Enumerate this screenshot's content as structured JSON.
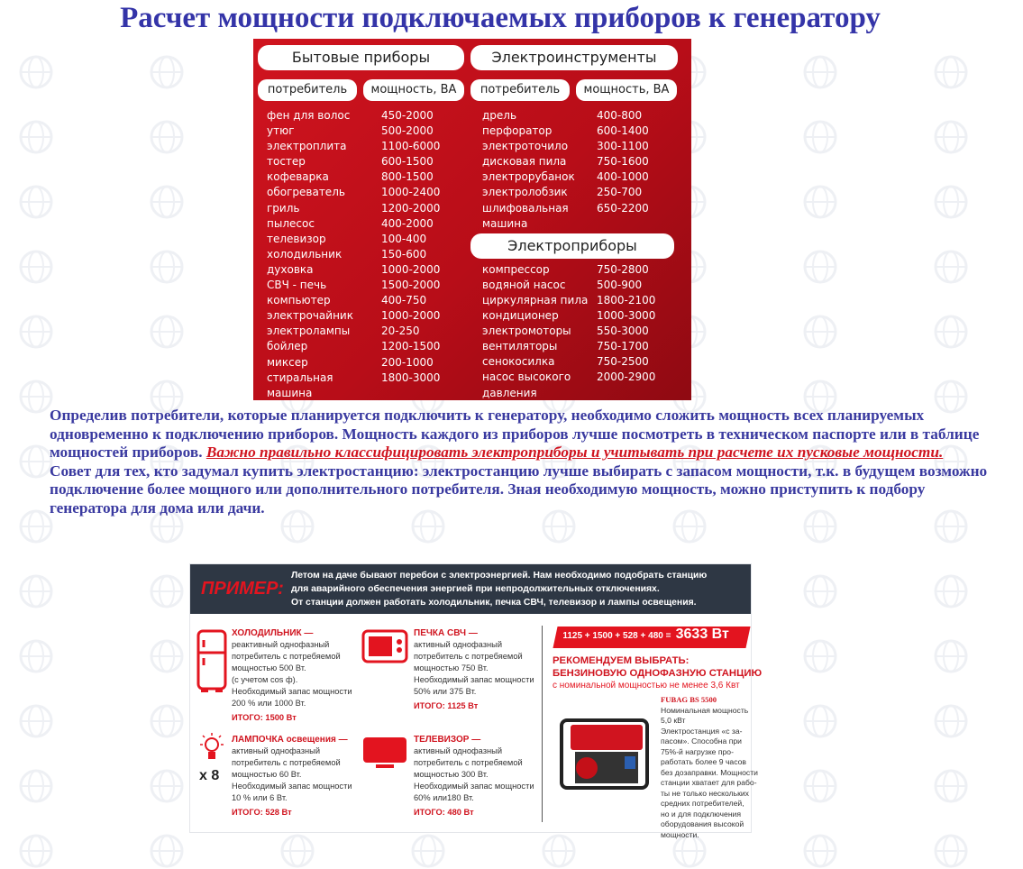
{
  "watermark": "ТЕХНОСОЮЗ",
  "title": "Расчет мощности подключаемых приборов к генератору",
  "table": {
    "household_title": "Бытовые приборы",
    "tools_title": "Электроинструменты",
    "devices_title": "Электроприборы",
    "col_consumer": "потребитель",
    "col_power": "мощность, ВА",
    "household": [
      [
        "фен для волос",
        "450-2000"
      ],
      [
        "утюг",
        "500-2000"
      ],
      [
        "электроплита",
        "1100-6000"
      ],
      [
        "тостер",
        "600-1500"
      ],
      [
        "кофеварка",
        "800-1500"
      ],
      [
        "обогреватель",
        "1000-2400"
      ],
      [
        "гриль",
        "1200-2000"
      ],
      [
        "пылесос",
        "400-2000"
      ],
      [
        "телевизор",
        "100-400"
      ],
      [
        "холодильник",
        "150-600"
      ],
      [
        "духовка",
        "1000-2000"
      ],
      [
        "СВЧ - печь",
        "1500-2000"
      ],
      [
        "компьютер",
        "400-750"
      ],
      [
        "электрочайник",
        "1000-2000"
      ],
      [
        "электролампы",
        "20-250"
      ],
      [
        "бойлер",
        "1200-1500"
      ],
      [
        "миксер",
        "200-1000"
      ],
      [
        "стиральная машина",
        "1800-3000"
      ]
    ],
    "tools": [
      [
        "дрель",
        "400-800"
      ],
      [
        "перфоратор",
        "600-1400"
      ],
      [
        "электроточило",
        "300-1100"
      ],
      [
        "дисковая пила",
        "750-1600"
      ],
      [
        "электрорубанок",
        "400-1000"
      ],
      [
        "электролобзик",
        "250-700"
      ],
      [
        "шлифовальная машина",
        "650-2200"
      ]
    ],
    "devices": [
      [
        "компрессор",
        "750-2800"
      ],
      [
        "водяной насос",
        "500-900"
      ],
      [
        "циркулярная пила",
        "1800-2100"
      ],
      [
        "кондиционер",
        "1000-3000"
      ],
      [
        "электромоторы",
        "550-3000"
      ],
      [
        "вентиляторы",
        "750-1700"
      ],
      [
        "сенокосилка",
        "750-2500"
      ],
      [
        "насос высокого давления",
        "2000-2900"
      ]
    ]
  },
  "paragraph": {
    "p1": "Определив потребители, которые планируется подключить к генератору, необходимо сложить мощность всех планируемых одновременно к подключению приборов. Мощность каждого из приборов лучше посмотреть в техническом паспорте или в таблице мощностей приборов. ",
    "warning": "Важно правильно классифицировать электроприборы и учитывать при расчете их пусковые мощности.",
    "p2": "Совет для тех, кто задумал купить электростанцию: электростанцию лучше выбирать с запасом мощности, т.к. в будущем возможно подключение более мощного или дополнительного потребителя. Зная необходимую мощность, можно приступить к подбору генератора для дома или дачи."
  },
  "example": {
    "label": "ПРИМЕР:",
    "intro": [
      "Летом на даче бывают перебои с электроэнергией. Нам необходимо подобрать станцию",
      "для аварийного обеспечения энергией при непродолжительных отключениях.",
      "От станции должен работать холодильник, печка СВЧ, телевизор и лампы освещения."
    ],
    "accent": "#e3141f",
    "cards": [
      {
        "title": "ХОЛОДИЛЬНИК —",
        "text": [
          "реактивный однофазный",
          "потребитель с потребяемой",
          "мощностью 500 Вт.",
          "(с учетом cos ф).",
          "Необходимый запас мощности",
          "200 % или 1000 Вт."
        ],
        "total": "ИТОГО: 1500 Вт",
        "icon": "fridge-icon"
      },
      {
        "title": "ПЕЧКА СВЧ —",
        "text": [
          "активный однофазный",
          "потребитель с потребяемой",
          "мощностью 750 Вт.",
          "Необходимый запас мощности",
          "50% или 375 Вт."
        ],
        "total": "ИТОГО: 1125 Вт",
        "icon": "microwave-icon"
      },
      {
        "title": "ЛАМПОЧКА освещения —",
        "text": [
          "активный однофазный",
          "потребитель с потребяемой",
          "мощностью 60 Вт.",
          "Необходимый запас мощности",
          "10 % или 6 Вт."
        ],
        "total": "ИТОГО: 528 Вт",
        "icon": "lightbulb-icon",
        "multiplier": "x 8"
      },
      {
        "title": "ТЕЛЕВИЗОР —",
        "text": [
          "активный однофазный",
          "потребитель с потребяемой",
          "мощностью 300 Вт.",
          "Необходимый запас мощности",
          "60% или180 Вт."
        ],
        "total": "ИТОГО: 480 Вт",
        "icon": "tv-icon"
      }
    ],
    "sum_formula": "1125 + 1500 + 528 + 480 =",
    "sum_total": "3633 Вт",
    "recommend": [
      "РЕКОМЕНДУЕМ ВЫБРАТЬ:",
      "БЕНЗИНОВУЮ ОДНОФАЗНУЮ СТАНЦИЮ"
    ],
    "recommend_sub": "с номинальной мощностью не менее 3,6 Квт",
    "model_name": "FUBAG BS 5500",
    "model_text": [
      "Номинальная мощность",
      "5,0 кВт",
      "Электростанция «с за-",
      "пасом». Способна при",
      "75%-й нагрузке про-",
      "работать более 9 часов",
      "без дозаправки. Мощности",
      "станции хватает для рабо-",
      "ты не только нескольких",
      "средних потребителей,",
      "но и для подключения",
      "оборудования высокой",
      "мощности."
    ]
  }
}
